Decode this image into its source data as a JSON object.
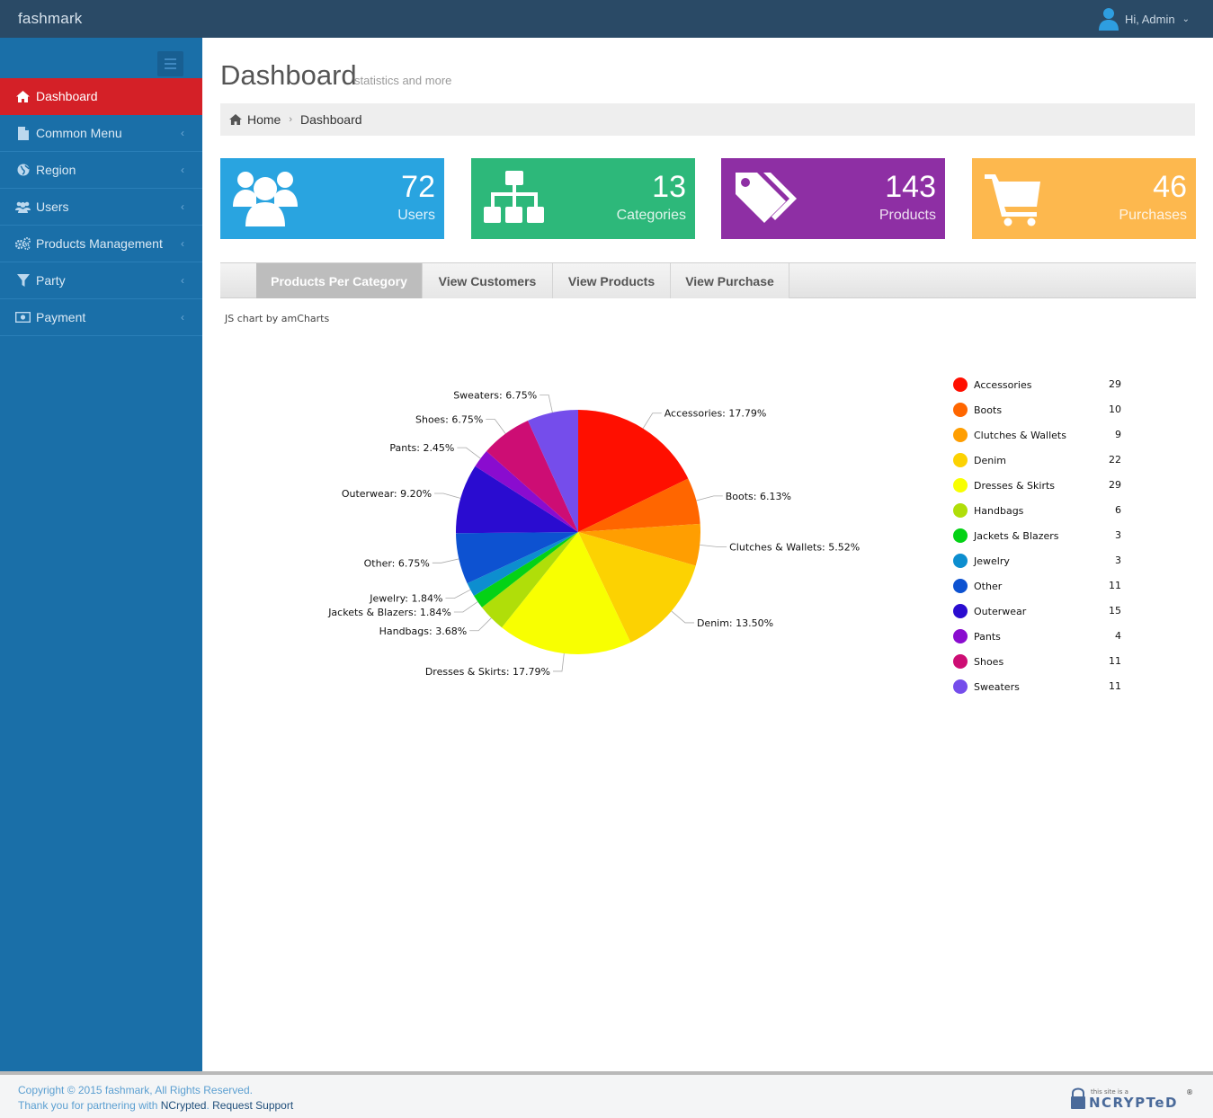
{
  "app": {
    "brand": "fashmark",
    "user_greeting": "Hi, Admin"
  },
  "sidebar": {
    "items": [
      {
        "label": "Dashboard",
        "icon": "home-icon",
        "active": true
      },
      {
        "label": "Common Menu",
        "icon": "file-icon"
      },
      {
        "label": "Region",
        "icon": "globe-icon"
      },
      {
        "label": "Users",
        "icon": "users-icon"
      },
      {
        "label": "Products Management",
        "icon": "gears-icon"
      },
      {
        "label": "Party",
        "icon": "filter-icon"
      },
      {
        "label": "Payment",
        "icon": "money-icon"
      }
    ]
  },
  "page": {
    "title": "Dashboard",
    "subtitle": "statistics and more"
  },
  "breadcrumb": {
    "home": "Home",
    "current": "Dashboard"
  },
  "stats": [
    {
      "value": "72",
      "label": "Users",
      "color": "#29a4e0",
      "icon": "users-icon"
    },
    {
      "value": "13",
      "label": "Categories",
      "color": "#2db87a",
      "icon": "sitemap-icon"
    },
    {
      "value": "143",
      "label": "Products",
      "color": "#8e2fa4",
      "icon": "tags-icon"
    },
    {
      "value": "46",
      "label": "Purchases",
      "color": "#fdb84e",
      "icon": "cart-icon"
    }
  ],
  "tabs": [
    "Products Per Category",
    "View Customers",
    "View Products",
    "View Purchase"
  ],
  "chart_credit": "JS chart by amCharts",
  "chart_data": {
    "type": "pie",
    "slices": [
      {
        "name": "Accessories",
        "value": 29,
        "percent": "17.79%",
        "color": "#ff0f00"
      },
      {
        "name": "Boots",
        "value": 10,
        "percent": "6.13%",
        "color": "#ff6600"
      },
      {
        "name": "Clutches & Wallets",
        "value": 9,
        "percent": "5.52%",
        "color": "#ff9e01"
      },
      {
        "name": "Denim",
        "value": 22,
        "percent": "13.50%",
        "color": "#fcd202"
      },
      {
        "name": "Dresses & Skirts",
        "value": 29,
        "percent": "17.79%",
        "color": "#f8ff01"
      },
      {
        "name": "Handbags",
        "value": 6,
        "percent": "3.68%",
        "color": "#b0de09"
      },
      {
        "name": "Jackets & Blazers",
        "value": 3,
        "percent": "1.84%",
        "color": "#04d215"
      },
      {
        "name": "Jewelry",
        "value": 3,
        "percent": "1.84%",
        "color": "#0d8ecf"
      },
      {
        "name": "Other",
        "value": 11,
        "percent": "6.75%",
        "color": "#0d52d1"
      },
      {
        "name": "Outerwear",
        "value": 15,
        "percent": "9.20%",
        "color": "#2a0cd0"
      },
      {
        "name": "Pants",
        "value": 4,
        "percent": "2.45%",
        "color": "#8a0ccf"
      },
      {
        "name": "Shoes",
        "value": 11,
        "percent": "6.75%",
        "color": "#cd0d74"
      },
      {
        "name": "Sweaters",
        "value": 11,
        "percent": "6.75%",
        "color": "#754deb"
      }
    ],
    "legend_position": "right"
  },
  "footer": {
    "copyright": "Copyright © 2015 fashmark, All Rights Reserved.",
    "thanks_prefix": "Thank you for partnering with ",
    "partner": "NCrypted",
    "thanks_sep": ". ",
    "support": "Request Support",
    "badge_top": "this site is a",
    "badge_main": "NCRYPTeD",
    "badge_mark": "®"
  }
}
